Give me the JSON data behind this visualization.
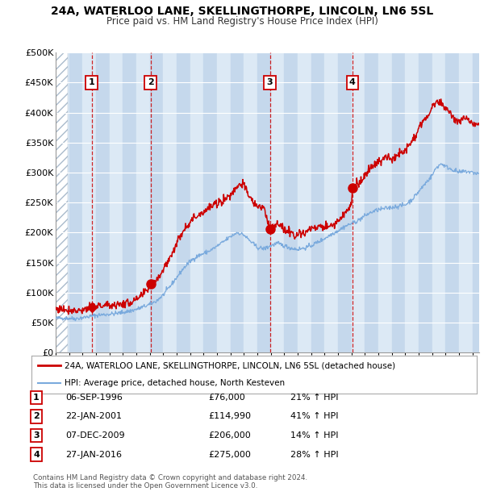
{
  "title": "24A, WATERLOO LANE, SKELLINGTHORPE, LINCOLN, LN6 5SL",
  "subtitle": "Price paid vs. HM Land Registry's House Price Index (HPI)",
  "xlim": [
    1994.0,
    2025.5
  ],
  "ylim": [
    0,
    500000
  ],
  "yticks": [
    0,
    50000,
    100000,
    150000,
    200000,
    250000,
    300000,
    350000,
    400000,
    450000,
    500000
  ],
  "ytick_labels": [
    "£0",
    "£50K",
    "£100K",
    "£150K",
    "£200K",
    "£250K",
    "£300K",
    "£350K",
    "£400K",
    "£450K",
    "£500K"
  ],
  "sale_dates": [
    1996.68,
    2001.06,
    2009.93,
    2016.07
  ],
  "sale_prices": [
    76000,
    114990,
    206000,
    275000
  ],
  "sale_labels": [
    "1",
    "2",
    "3",
    "4"
  ],
  "legend_house": "24A, WATERLOO LANE, SKELLINGTHORPE, LINCOLN, LN6 5SL (detached house)",
  "legend_hpi": "HPI: Average price, detached house, North Kesteven",
  "table_rows": [
    [
      "1",
      "06-SEP-1996",
      "£76,000",
      "21% ↑ HPI"
    ],
    [
      "2",
      "22-JAN-2001",
      "£114,990",
      "41% ↑ HPI"
    ],
    [
      "3",
      "07-DEC-2009",
      "£206,000",
      "14% ↑ HPI"
    ],
    [
      "4",
      "27-JAN-2016",
      "£275,000",
      "28% ↑ HPI"
    ]
  ],
  "footnote": "Contains HM Land Registry data © Crown copyright and database right 2024.\nThis data is licensed under the Open Government Licence v3.0.",
  "house_color": "#cc0000",
  "hpi_color": "#7aaadd",
  "bg_light": "#dce9f5",
  "bg_dark": "#c5d8ec",
  "grid_color": "#ffffff",
  "vline_color": "#cc0000",
  "number_box_color": "#cc0000"
}
